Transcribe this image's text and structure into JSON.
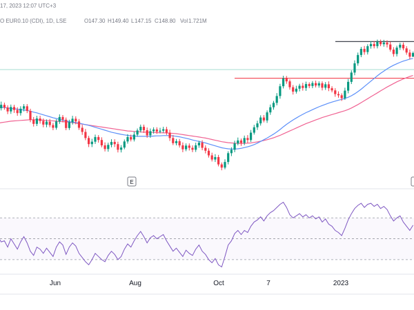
{
  "header": {
    "info_text": "17, 2023 12:07 UTC+3",
    "instrument": "O EUR0.10 (CDI), 1D, LSE",
    "ohlc": [
      {
        "label": "O",
        "value": "147.30"
      },
      {
        "label": "H",
        "value": "149.40"
      },
      {
        "label": "L",
        "value": "147.15"
      },
      {
        "label": "C",
        "value": "148.80"
      },
      {
        "label": "Vol",
        "value": "1.721M"
      }
    ]
  },
  "colors": {
    "up": "#089981",
    "down": "#f23645",
    "ma_fast": "#5b8ff9",
    "ma_slow": "#f06292",
    "hline": "#2a2e39",
    "hline_red": "#f23645",
    "rsi": "#7e57c2",
    "grid": "#e0e3eb",
    "baseline": "#a6dcd2"
  },
  "event_marker": "E",
  "chart_data": [
    {
      "type": "candlestick",
      "x_ticks": [
        "Jun",
        "Aug",
        "Oct",
        "7",
        "2023"
      ],
      "price_levels": [
        153.5,
        138.5
      ],
      "candles": [
        [
          128.4,
          126.2,
          129.6,
          125.0
        ],
        [
          126.2,
          127.6,
          128.9,
          125.3
        ],
        [
          127.6,
          126.5,
          128.5,
          125.6
        ],
        [
          126.5,
          124.9,
          127.4,
          123.8
        ],
        [
          124.9,
          126.7,
          127.7,
          123.9
        ],
        [
          126.7,
          125.5,
          127.6,
          124.3
        ],
        [
          125.5,
          124.2,
          126.6,
          123.1
        ],
        [
          124.2,
          126.0,
          127.0,
          123.2
        ],
        [
          126.0,
          127.0,
          127.9,
          124.9
        ],
        [
          127.0,
          125.1,
          127.9,
          124.2
        ],
        [
          125.1,
          121.5,
          126.0,
          120.5
        ],
        [
          121.5,
          119.8,
          122.6,
          118.7
        ],
        [
          119.8,
          122.0,
          123.1,
          118.9
        ],
        [
          122.0,
          121.0,
          123.1,
          119.9
        ],
        [
          121.0,
          119.5,
          122.0,
          118.4
        ],
        [
          119.5,
          120.7,
          121.6,
          118.4
        ],
        [
          120.7,
          119.3,
          121.8,
          118.4
        ],
        [
          119.3,
          118.2,
          120.2,
          117.2
        ],
        [
          118.2,
          120.8,
          121.7,
          117.4
        ],
        [
          120.8,
          122.6,
          123.7,
          119.8
        ],
        [
          122.6,
          121.5,
          123.4,
          120.4
        ],
        [
          121.5,
          118.1,
          122.4,
          117.2
        ],
        [
          118.1,
          120.5,
          121.5,
          117.3
        ],
        [
          120.5,
          121.9,
          123.1,
          119.5
        ],
        [
          121.9,
          120.8,
          122.9,
          119.6
        ],
        [
          120.8,
          118.2,
          121.8,
          117.3
        ],
        [
          118.2,
          116.5,
          119.4,
          115.3
        ],
        [
          116.5,
          114.0,
          117.7,
          113.1
        ],
        [
          114.0,
          111.5,
          114.9,
          110.3
        ],
        [
          111.5,
          112.5,
          113.7,
          110.3
        ],
        [
          112.5,
          114.4,
          115.4,
          111.6
        ],
        [
          114.4,
          113.2,
          115.2,
          112.1
        ],
        [
          113.2,
          111.0,
          114.3,
          110.2
        ],
        [
          111.0,
          109.5,
          112.2,
          108.5
        ],
        [
          109.5,
          111.2,
          112.1,
          108.4
        ],
        [
          111.2,
          112.4,
          113.5,
          110.2
        ],
        [
          112.4,
          111.5,
          113.5,
          110.3
        ],
        [
          111.5,
          109.2,
          112.5,
          108.1
        ],
        [
          109.2,
          110.1,
          111.1,
          108.1
        ],
        [
          110.1,
          112.6,
          113.4,
          109.4
        ],
        [
          112.6,
          114.4,
          115.6,
          111.7
        ],
        [
          114.4,
          113.4,
          115.4,
          112.6
        ],
        [
          113.4,
          115.4,
          116.6,
          112.6
        ],
        [
          115.4,
          117.1,
          117.9,
          114.6
        ],
        [
          117.1,
          118.6,
          119.5,
          116.3
        ],
        [
          118.6,
          117.2,
          119.5,
          116.1
        ],
        [
          117.2,
          115.1,
          118.3,
          114.1
        ],
        [
          115.1,
          116.8,
          117.9,
          114.1
        ],
        [
          116.8,
          117.5,
          118.4,
          115.8
        ],
        [
          117.5,
          116.6,
          118.4,
          115.7
        ],
        [
          116.6,
          117.0,
          118.2,
          115.9
        ],
        [
          117.0,
          117.6,
          118.6,
          116.2
        ],
        [
          117.6,
          116.2,
          118.6,
          115.3
        ],
        [
          116.2,
          114.0,
          117.4,
          112.8
        ],
        [
          114.0,
          111.9,
          115.2,
          111.1
        ],
        [
          111.9,
          112.7,
          113.6,
          111.0
        ],
        [
          112.7,
          111.0,
          113.6,
          110.1
        ],
        [
          111.0,
          109.4,
          112.2,
          108.2
        ],
        [
          109.4,
          110.9,
          111.8,
          108.6
        ],
        [
          110.9,
          110.0,
          111.8,
          108.9
        ],
        [
          110.0,
          109.2,
          111.0,
          108.2
        ],
        [
          109.2,
          111.0,
          112.1,
          108.3
        ],
        [
          111.0,
          112.1,
          112.9,
          110.0
        ],
        [
          112.1,
          110.0,
          113.1,
          109.0
        ],
        [
          110.0,
          108.8,
          111.0,
          107.7
        ],
        [
          108.8,
          106.9,
          109.8,
          106.0
        ],
        [
          106.9,
          105.2,
          108.0,
          104.4
        ],
        [
          105.2,
          106.2,
          107.4,
          104.2
        ],
        [
          106.2,
          103.2,
          107.1,
          102.4
        ],
        [
          103.2,
          101.9,
          104.0,
          100.8
        ],
        [
          101.9,
          104.2,
          105.3,
          101.2
        ],
        [
          104.2,
          107.8,
          108.6,
          103.2
        ],
        [
          107.8,
          109.2,
          110.2,
          106.6
        ],
        [
          109.2,
          111.8,
          112.9,
          108.2
        ],
        [
          111.8,
          113.0,
          114.2,
          111.0
        ],
        [
          113.0,
          112.0,
          113.8,
          110.8
        ],
        [
          112.0,
          114.0,
          115.0,
          111.1
        ],
        [
          114.0,
          113.2,
          115.2,
          112.0
        ],
        [
          113.2,
          116.2,
          117.3,
          112.4
        ],
        [
          116.2,
          118.4,
          119.4,
          115.4
        ],
        [
          118.4,
          120.0,
          121.1,
          117.3
        ],
        [
          120.0,
          122.4,
          123.3,
          119.1
        ],
        [
          122.4,
          121.2,
          123.4,
          120.4
        ],
        [
          121.2,
          124.5,
          125.3,
          120.2
        ],
        [
          124.5,
          126.6,
          127.7,
          123.5
        ],
        [
          126.6,
          128.4,
          129.2,
          125.6
        ],
        [
          128.4,
          131.2,
          132.4,
          127.4
        ],
        [
          131.2,
          135.2,
          136.2,
          130.1
        ],
        [
          135.2,
          138.4,
          139.5,
          134.3
        ],
        [
          138.4,
          137.2,
          139.4,
          136.2
        ],
        [
          137.2,
          134.8,
          138.0,
          133.8
        ],
        [
          134.8,
          133.0,
          135.7,
          131.8
        ],
        [
          133.0,
          134.2,
          135.4,
          132.2
        ],
        [
          134.2,
          135.4,
          136.2,
          133.1
        ],
        [
          135.4,
          134.5,
          136.6,
          133.4
        ],
        [
          134.5,
          136.1,
          137.1,
          133.3
        ],
        [
          136.1,
          135.3,
          136.8,
          134.4
        ],
        [
          135.3,
          136.5,
          137.3,
          134.4
        ],
        [
          136.5,
          135.5,
          137.5,
          134.7
        ],
        [
          135.5,
          136.4,
          137.2,
          134.6
        ],
        [
          136.4,
          134.6,
          137.2,
          133.5
        ],
        [
          134.6,
          136.0,
          136.9,
          133.7
        ],
        [
          136.0,
          134.4,
          137.2,
          133.2
        ],
        [
          134.4,
          133.5,
          135.2,
          132.7
        ],
        [
          133.5,
          132.0,
          134.4,
          130.9
        ],
        [
          132.0,
          131.5,
          133.1,
          130.5
        ],
        [
          131.5,
          130.3,
          132.3,
          129.2
        ],
        [
          130.3,
          133.4,
          134.6,
          129.6
        ],
        [
          133.4,
          137.0,
          138.2,
          132.3
        ],
        [
          137.0,
          140.8,
          141.7,
          136.1
        ],
        [
          140.8,
          144.6,
          145.8,
          139.7
        ],
        [
          144.6,
          148.0,
          149.0,
          143.6
        ],
        [
          148.0,
          150.5,
          151.3,
          147.1
        ],
        [
          150.5,
          149.2,
          151.7,
          148.1
        ],
        [
          149.2,
          151.6,
          152.4,
          148.2
        ],
        [
          151.6,
          152.5,
          153.6,
          150.6
        ],
        [
          152.5,
          151.6,
          153.7,
          150.7
        ],
        [
          151.6,
          153.4,
          154.3,
          150.7
        ],
        [
          153.4,
          152.4,
          154.3,
          151.6
        ],
        [
          152.4,
          153.1,
          154.2,
          151.4
        ],
        [
          153.1,
          152.3,
          154.0,
          151.1
        ],
        [
          152.3,
          150.2,
          153.4,
          149.4
        ],
        [
          150.2,
          148.4,
          151.2,
          147.3
        ],
        [
          148.4,
          151.0,
          151.8,
          147.4
        ],
        [
          151.0,
          152.2,
          153.0,
          150.1
        ],
        [
          152.2,
          150.7,
          153.1,
          149.9
        ],
        [
          150.7,
          149.0,
          151.6,
          148.1
        ],
        [
          149.0,
          147.3,
          150.2,
          146.2
        ],
        [
          147.3,
          148.8,
          149.4,
          147.2
        ]
      ],
      "ma_fast": [
        126.8,
        126.6,
        126.5,
        126.3,
        126.1,
        126.0,
        125.8,
        125.6,
        125.5,
        125.3,
        125.0,
        124.6,
        124.3,
        123.9,
        123.5,
        123.1,
        122.7,
        122.3,
        122.0,
        121.6,
        121.3,
        121.0,
        120.7,
        120.5,
        120.3,
        120.1,
        119.8,
        119.5,
        119.2,
        118.8,
        118.4,
        118.0,
        117.6,
        117.2,
        116.8,
        116.4,
        116.1,
        115.8,
        115.5,
        115.3,
        115.1,
        114.9,
        114.8,
        114.7,
        114.7,
        114.7,
        114.7,
        114.7,
        114.8,
        114.9,
        114.9,
        115.0,
        115.0,
        115.0,
        114.9,
        114.7,
        114.5,
        114.2,
        113.9,
        113.6,
        113.2,
        112.9,
        112.6,
        112.3,
        112.0,
        111.6,
        111.2,
        110.8,
        110.4,
        110.0,
        109.8,
        109.6,
        109.5,
        109.5,
        109.6,
        109.8,
        110.1,
        110.4,
        110.8,
        111.3,
        111.9,
        112.6,
        113.3,
        114.0,
        114.8,
        115.6,
        116.5,
        117.5,
        118.6,
        119.6,
        120.5,
        121.4,
        122.2,
        123.0,
        123.7,
        124.4,
        125.0,
        125.6,
        126.2,
        126.8,
        127.3,
        127.8,
        128.3,
        128.7,
        129.1,
        129.5,
        129.8,
        130.2,
        130.7,
        131.3,
        132.1,
        133.0,
        134.0,
        135.1,
        136.2,
        137.3,
        138.4,
        139.5,
        140.5,
        141.4,
        142.3,
        143.1,
        143.8,
        144.4,
        145.0,
        145.5,
        145.9,
        146.3,
        146.6
      ],
      "ma_slow": [
        120.0,
        120.3,
        120.5,
        120.7,
        120.9,
        121.0,
        121.1,
        121.2,
        121.3,
        121.4,
        121.5,
        121.5,
        121.5,
        121.4,
        121.3,
        121.2,
        121.1,
        121.0,
        120.9,
        120.8,
        120.7,
        120.6,
        120.5,
        120.3,
        120.1,
        119.9,
        119.7,
        119.5,
        119.3,
        119.1,
        118.9,
        118.7,
        118.5,
        118.3,
        118.1,
        117.9,
        117.7,
        117.5,
        117.3,
        117.1,
        116.9,
        116.8,
        116.7,
        116.6,
        116.5,
        116.4,
        116.4,
        116.3,
        116.3,
        116.2,
        116.2,
        116.1,
        116.1,
        116.0,
        115.9,
        115.8,
        115.6,
        115.4,
        115.2,
        115.0,
        114.8,
        114.6,
        114.4,
        114.2,
        114.0,
        113.7,
        113.4,
        113.1,
        112.8,
        112.5,
        112.3,
        112.1,
        112.0,
        111.9,
        111.8,
        111.8,
        111.8,
        111.9,
        112.0,
        112.2,
        112.4,
        112.7,
        113.0,
        113.3,
        113.7,
        114.1,
        114.6,
        115.1,
        115.7,
        116.3,
        116.9,
        117.5,
        118.1,
        118.7,
        119.3,
        119.9,
        120.4,
        120.9,
        121.4,
        121.9,
        122.4,
        122.8,
        123.2,
        123.6,
        124.0,
        124.4,
        124.8,
        125.2,
        125.7,
        126.3,
        127.0,
        127.7,
        128.5,
        129.3,
        130.1,
        130.9,
        131.7,
        132.5,
        133.3,
        134.1,
        134.9,
        135.6,
        136.3,
        137.0,
        137.6,
        138.2,
        138.7,
        139.2,
        139.6
      ]
    },
    {
      "type": "line",
      "name": "RSI",
      "reference_levels": [
        70,
        50,
        30
      ],
      "values": [
        52,
        47,
        48,
        42,
        50,
        45,
        40,
        47,
        52,
        46,
        38,
        34,
        42,
        40,
        36,
        41,
        37,
        33,
        42,
        47,
        44,
        35,
        42,
        46,
        43,
        36,
        32,
        28,
        25,
        30,
        36,
        33,
        30,
        28,
        34,
        38,
        35,
        30,
        33,
        40,
        45,
        42,
        48,
        53,
        57,
        52,
        46,
        51,
        53,
        50,
        52,
        54,
        48,
        43,
        38,
        41,
        37,
        33,
        39,
        36,
        34,
        40,
        44,
        38,
        35,
        30,
        27,
        31,
        25,
        23,
        33,
        44,
        48,
        55,
        58,
        54,
        58,
        56,
        62,
        66,
        68,
        71,
        67,
        72,
        75,
        77,
        80,
        83,
        85,
        80,
        73,
        70,
        72,
        74,
        71,
        73,
        70,
        72,
        69,
        71,
        66,
        69,
        64,
        62,
        58,
        56,
        53,
        60,
        68,
        74,
        79,
        82,
        84,
        80,
        83,
        84,
        81,
        83,
        79,
        81,
        78,
        72,
        67,
        70,
        72,
        66,
        62,
        58,
        63
      ]
    }
  ]
}
